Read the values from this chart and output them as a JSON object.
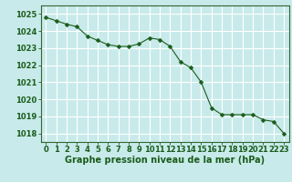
{
  "x": [
    0,
    1,
    2,
    3,
    4,
    5,
    6,
    7,
    8,
    9,
    10,
    11,
    12,
    13,
    14,
    15,
    16,
    17,
    18,
    19,
    20,
    21,
    22,
    23
  ],
  "y": [
    1024.8,
    1024.6,
    1024.4,
    1024.25,
    1023.7,
    1023.45,
    1023.2,
    1023.1,
    1023.1,
    1023.25,
    1023.6,
    1023.5,
    1023.1,
    1022.2,
    1021.85,
    1021.0,
    1019.5,
    1019.1,
    1019.1,
    1019.1,
    1019.1,
    1018.8,
    1018.7,
    1018.0
  ],
  "line_color": "#1a5c1a",
  "marker": "D",
  "marker_size": 2.5,
  "bg_color": "#c8eaea",
  "grid_color": "#ffffff",
  "xlabel": "Graphe pression niveau de la mer (hPa)",
  "xlabel_color": "#1a5c1a",
  "xlabel_fontsize": 7,
  "tick_color": "#1a5c1a",
  "tick_fontsize": 6,
  "ylim": [
    1017.5,
    1025.5
  ],
  "yticks": [
    1018,
    1019,
    1020,
    1021,
    1022,
    1023,
    1024,
    1025
  ],
  "xlim": [
    -0.5,
    23.5
  ],
  "xticks": [
    0,
    1,
    2,
    3,
    4,
    5,
    6,
    7,
    8,
    9,
    10,
    11,
    12,
    13,
    14,
    15,
    16,
    17,
    18,
    19,
    20,
    21,
    22,
    23
  ]
}
